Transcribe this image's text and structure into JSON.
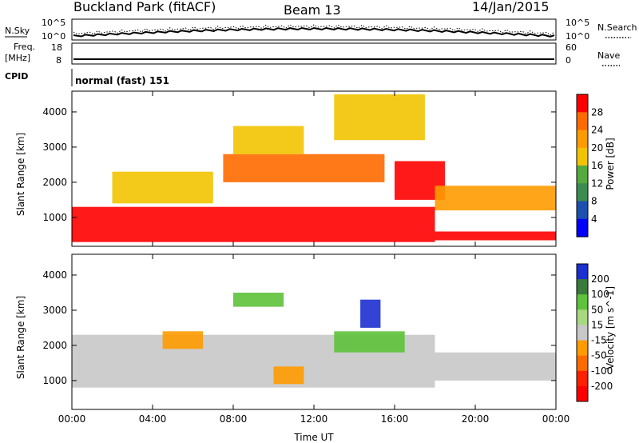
{
  "header": {
    "station": "Buckland Park (fitACF)",
    "beam": "Beam 13",
    "date": "14/Jan/2015"
  },
  "mini_panels": {
    "nsky_label": "N.Sky",
    "nsearch_label": "N.Search",
    "noise_tick_top": "10^5",
    "noise_tick_bottom": "10^0",
    "freq_label_line1": "Freq.",
    "freq_label_line2": "[MHz]",
    "freq_ticks": [
      "18",
      "8"
    ],
    "nave_label": "Nave",
    "nave_ticks": [
      "60",
      "0"
    ],
    "cpid_label": "CPID",
    "cpid_text": "normal (fast) 151"
  },
  "chart_data": [
    {
      "type": "heatmap",
      "panel": "power",
      "ylabel": "Slant Range [km]",
      "xlabel": "",
      "x_ticks": [
        "00:00",
        "04:00",
        "08:00",
        "12:00",
        "16:00",
        "20:00",
        "00:00"
      ],
      "y_ticks": [
        1000,
        2000,
        3000,
        4000
      ],
      "xlim_hours": [
        0,
        24
      ],
      "ylim_km": [
        180,
        4590
      ],
      "colorbar": {
        "label": "Power [dB]",
        "ticks": [
          "28",
          "24",
          "20",
          "16",
          "12",
          "8",
          "4"
        ],
        "colors": [
          "#ff0000",
          "#ff6a00",
          "#ff9b00",
          "#f2c400",
          "#54aa3e",
          "#3c8c50",
          "#1c4fb0",
          "#0000ff"
        ]
      },
      "regions": [
        {
          "t0": 0.0,
          "t1": 18.0,
          "r0": 300,
          "r1": 1300,
          "level": 0
        },
        {
          "t0": 2.0,
          "t1": 7.0,
          "r0": 1400,
          "r1": 2300,
          "level": 3
        },
        {
          "t0": 7.5,
          "t1": 15.5,
          "r0": 2000,
          "r1": 2800,
          "level": 1
        },
        {
          "t0": 16.0,
          "t1": 18.5,
          "r0": 1500,
          "r1": 2600,
          "level": 0
        },
        {
          "t0": 18.0,
          "t1": 24.0,
          "r0": 350,
          "r1": 600,
          "level": 0
        },
        {
          "t0": 18.0,
          "t1": 24.0,
          "r0": 1200,
          "r1": 1900,
          "level": 2
        },
        {
          "t0": 8.0,
          "t1": 11.5,
          "r0": 2800,
          "r1": 3600,
          "level": 3
        },
        {
          "t0": 13.0,
          "t1": 17.5,
          "r0": 3200,
          "r1": 4500,
          "level": 3
        }
      ]
    },
    {
      "type": "heatmap",
      "panel": "velocity",
      "ylabel": "Slant Range [km]",
      "xlabel": "Time UT",
      "x_ticks": [
        "00:00",
        "04:00",
        "08:00",
        "12:00",
        "16:00",
        "20:00",
        "00:00"
      ],
      "y_ticks": [
        1000,
        2000,
        3000,
        4000
      ],
      "xlim_hours": [
        0,
        24
      ],
      "ylim_km": [
        180,
        4590
      ],
      "colorbar": {
        "label": "Velocity [m s^-1]",
        "ticks": [
          "200",
          "100",
          "50",
          "15",
          "-15",
          "-50",
          "-100",
          "-200"
        ],
        "colors": [
          "#1c2fd0",
          "#3a7a3a",
          "#5ec23a",
          "#a8d880",
          "#c8c8c8",
          "#ff9b00",
          "#ff6a00",
          "#ff2000",
          "#ff0000"
        ]
      },
      "regions": [
        {
          "t0": 0.0,
          "t1": 18.0,
          "r0": 800,
          "r1": 2300,
          "level": 4
        },
        {
          "t0": 18.0,
          "t1": 24.0,
          "r0": 1000,
          "r1": 1800,
          "level": 4
        },
        {
          "t0": 14.3,
          "t1": 15.3,
          "r0": 2500,
          "r1": 3300,
          "level": 0
        },
        {
          "t0": 13.0,
          "t1": 16.5,
          "r0": 1800,
          "r1": 2400,
          "level": 2
        },
        {
          "t0": 8.0,
          "t1": 10.5,
          "r0": 3100,
          "r1": 3500,
          "level": 2
        },
        {
          "t0": 4.5,
          "t1": 6.5,
          "r0": 1900,
          "r1": 2400,
          "level": 5
        },
        {
          "t0": 10.0,
          "t1": 11.5,
          "r0": 900,
          "r1": 1400,
          "level": 5
        }
      ]
    }
  ]
}
